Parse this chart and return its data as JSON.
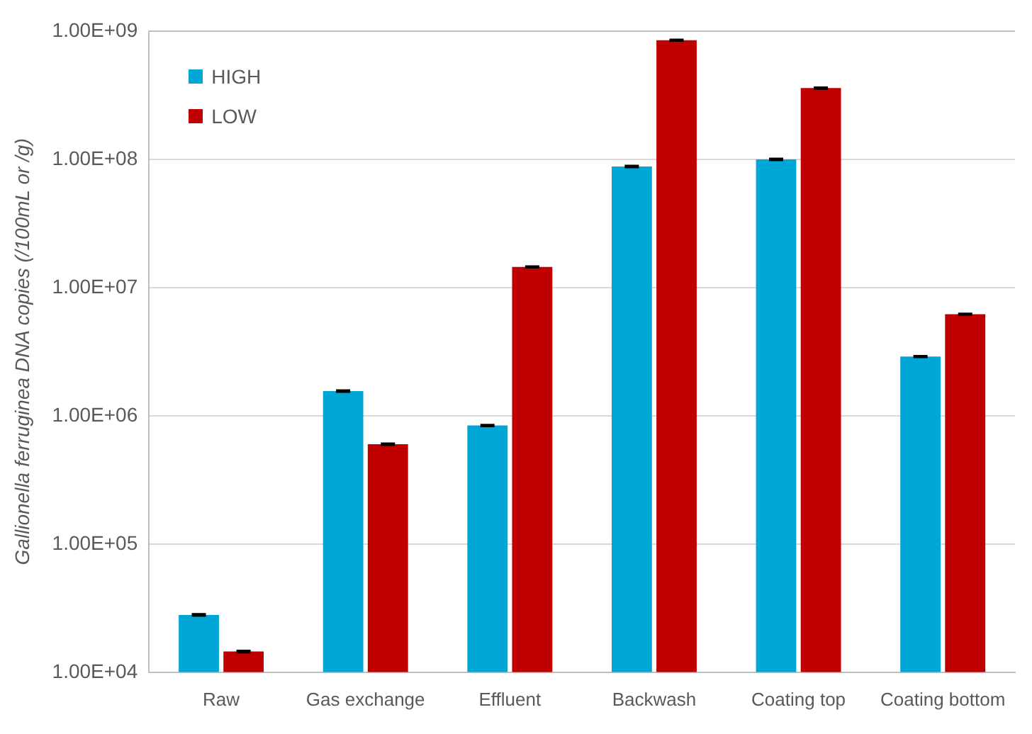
{
  "chart_data": {
    "type": "bar",
    "ylabel": "Gallionella ferruginea DNA copies (/100mL or /g)",
    "categories": [
      "Raw",
      "Gas exchange",
      "Effluent",
      "Backwash",
      "Coating top",
      "Coating bottom"
    ],
    "series": [
      {
        "name": "HIGH",
        "color": "#00a6d6",
        "values": [
          28000,
          1560000,
          840000,
          88000000,
          100000000,
          2900000
        ],
        "errors": [
          400,
          20000,
          10000,
          1000000,
          1200000,
          30000
        ]
      },
      {
        "name": "LOW",
        "color": "#c00000",
        "values": [
          14500,
          600000,
          14500000,
          850000000,
          360000000,
          6200000
        ],
        "errors": [
          200,
          8000,
          150000,
          9000000,
          4000000,
          60000
        ]
      }
    ],
    "log": true,
    "ylim": [
      10000,
      1000000000
    ],
    "yticks": [
      {
        "value": 10000,
        "label": "1.00E+04"
      },
      {
        "value": 100000,
        "label": "1.00E+05"
      },
      {
        "value": 1000000,
        "label": "1.00E+06"
      },
      {
        "value": 10000000,
        "label": "1.00E+07"
      },
      {
        "value": 100000000,
        "label": "1.00E+08"
      },
      {
        "value": 1000000000,
        "label": "1.00E+09"
      }
    ],
    "grid": "y",
    "legend": "top left"
  }
}
